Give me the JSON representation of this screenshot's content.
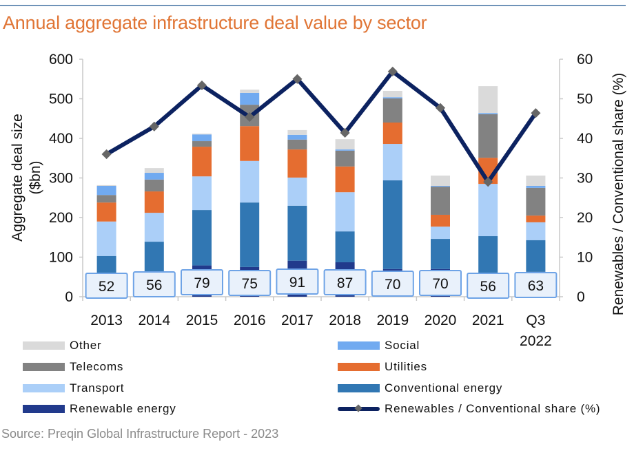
{
  "header": {
    "title": "Annual aggregate infrastructure deal value by sector"
  },
  "source": "Source: Preqin Global Infrastructure Report - 2023",
  "chart_data": {
    "type": "bar",
    "stacked": true,
    "title": "Annual aggregate infrastructure deal value by sector",
    "categories": [
      "2013",
      "2014",
      "2015",
      "2016",
      "2017",
      "2018",
      "2019",
      "2020",
      "2021",
      "Q3 2022"
    ],
    "category_labels": [
      [
        "2013"
      ],
      [
        "2014"
      ],
      [
        "2015"
      ],
      [
        "2016"
      ],
      [
        "2017"
      ],
      [
        "2018"
      ],
      [
        "2019"
      ],
      [
        "2020"
      ],
      [
        "2021"
      ],
      [
        "Q3",
        "2022"
      ]
    ],
    "ylabel": "Aggregate deal size ($bn)",
    "ylabel_lines": [
      "Aggregate deal size",
      "($bn)"
    ],
    "y2label": "Renewables / Conventional share (%)",
    "ylim": [
      0,
      600
    ],
    "yticks": [
      0,
      100,
      200,
      300,
      400,
      500,
      600
    ],
    "y2lim": [
      0,
      60
    ],
    "y2ticks": [
      0,
      10,
      20,
      30,
      40,
      50,
      60
    ],
    "grid": false,
    "legend_position": "bottom",
    "series": [
      {
        "name": "Renewable energy",
        "color": "#213a8c",
        "values": [
          52,
          56,
          79,
          75,
          91,
          87,
          70,
          70,
          56,
          63
        ]
      },
      {
        "name": "Conventional energy",
        "color": "#3177b3",
        "values": [
          51,
          83,
          140,
          163,
          139,
          78,
          224,
          76,
          97,
          80
        ]
      },
      {
        "name": "Transport",
        "color": "#abcff8",
        "values": [
          87,
          73,
          85,
          105,
          71,
          99,
          92,
          31,
          132,
          45
        ]
      },
      {
        "name": "Utilities",
        "color": "#e56d30",
        "values": [
          48,
          54,
          75,
          88,
          71,
          65,
          54,
          30,
          66,
          17
        ]
      },
      {
        "name": "Telecoms",
        "color": "#828282",
        "values": [
          19,
          30,
          14,
          54,
          25,
          40,
          61,
          71,
          110,
          70
        ]
      },
      {
        "name": "Social",
        "color": "#71aaf0",
        "values": [
          23,
          17,
          17,
          30,
          12,
          3,
          3,
          2,
          3,
          5
        ]
      },
      {
        "name": "Other",
        "color": "#dadada",
        "values": [
          2,
          12,
          2,
          8,
          12,
          26,
          16,
          26,
          68,
          26
        ]
      }
    ],
    "line_series": {
      "name": "Renewables / Conventional share (%)",
      "axis": "right",
      "color": "#0c2260",
      "marker_color": "#666666",
      "values": [
        36.0,
        43.0,
        53.4,
        45.4,
        55.0,
        41.4,
        56.9,
        47.7,
        29.0,
        46.4
      ]
    },
    "data_labels": {
      "series": "Renewable energy",
      "values": [
        "52",
        "56",
        "79",
        "75",
        "91",
        "87",
        "70",
        "70",
        "56",
        "63"
      ]
    }
  },
  "legend": {
    "items": [
      {
        "label": "Other",
        "kind": "bar",
        "color": "#dadada"
      },
      {
        "label": "Social",
        "kind": "bar",
        "color": "#71aaf0"
      },
      {
        "label": "Telecoms",
        "kind": "bar",
        "color": "#828282"
      },
      {
        "label": "Utilities",
        "kind": "bar",
        "color": "#e56d30"
      },
      {
        "label": "Transport",
        "kind": "bar",
        "color": "#abcff8"
      },
      {
        "label": "Conventional energy",
        "kind": "bar",
        "color": "#3177b3"
      },
      {
        "label": "Renewable energy",
        "kind": "bar",
        "color": "#213a8c"
      },
      {
        "label": "Renewables / Conventional share (%)",
        "kind": "line",
        "color": "#0c2260"
      }
    ]
  }
}
